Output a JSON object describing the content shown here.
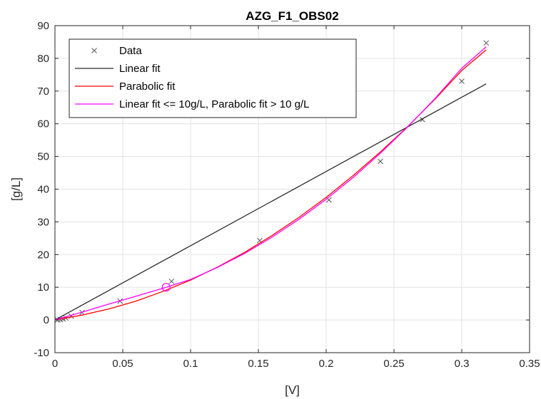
{
  "chart_data": {
    "type": "line",
    "title": "AZG_F1_OBS02",
    "xlabel": "[V]",
    "ylabel": "[g/L]",
    "xlim": [
      0,
      0.35
    ],
    "ylim": [
      -10,
      90
    ],
    "x_ticks": [
      "0",
      "0.05",
      "0.1",
      "0.15",
      "0.2",
      "0.25",
      "0.3",
      "0.35"
    ],
    "y_ticks": [
      "-10",
      "0",
      "10",
      "20",
      "30",
      "40",
      "50",
      "60",
      "70",
      "80",
      "90"
    ],
    "grid": true,
    "legend_position": "top-left",
    "legend": [
      {
        "label": "Data",
        "style": "marker-x",
        "color": "#555555"
      },
      {
        "label": "Linear fit",
        "style": "line",
        "color": "#2b2b2b"
      },
      {
        "label": "Parabolic fit",
        "style": "line",
        "color": "#ff0000"
      },
      {
        "label": "Linear fit <= 10g/L, Parabolic fit > 10 g/L",
        "style": "line",
        "color": "#ff00ff"
      }
    ],
    "series": [
      {
        "name": "Data",
        "kind": "scatter",
        "color": "#555555",
        "x": [
          0.002,
          0.004,
          0.006,
          0.008,
          0.012,
          0.02,
          0.048,
          0.086,
          0.151,
          0.202,
          0.24,
          0.271,
          0.3,
          0.318
        ],
        "y": [
          0.0,
          0.1,
          0.3,
          0.6,
          1.2,
          2.3,
          5.8,
          11.8,
          24.3,
          36.7,
          48.5,
          61.3,
          73.0,
          84.7
        ]
      },
      {
        "name": "Linear fit",
        "kind": "line",
        "color": "#2b2b2b",
        "x": [
          0,
          0.318
        ],
        "y": [
          0,
          72.2
        ]
      },
      {
        "name": "Parabolic fit",
        "kind": "line",
        "color": "#ff0000",
        "x": [
          0.0,
          0.02,
          0.04,
          0.06,
          0.08,
          0.1,
          0.12,
          0.14,
          0.16,
          0.18,
          0.2,
          0.22,
          0.24,
          0.26,
          0.28,
          0.3,
          0.318
        ],
        "y": [
          0.0,
          1.5,
          3.4,
          5.8,
          8.8,
          12.2,
          16.2,
          20.7,
          25.8,
          31.4,
          37.5,
          44.2,
          51.4,
          59.1,
          67.4,
          76.3,
          82.6
        ]
      },
      {
        "name": "Linear fit <= 10g/L, Parabolic fit > 10 g/L",
        "kind": "line",
        "color": "#ff00ff",
        "x": [
          0.0,
          0.02,
          0.04,
          0.06,
          0.082,
          0.1,
          0.12,
          0.14,
          0.16,
          0.18,
          0.2,
          0.22,
          0.24,
          0.26,
          0.28,
          0.3,
          0.318
        ],
        "y": [
          0.0,
          2.4,
          4.9,
          7.3,
          10.0,
          12.4,
          16.1,
          20.4,
          25.3,
          30.8,
          36.9,
          43.6,
          51.0,
          59.0,
          67.6,
          77.0,
          83.5
        ]
      }
    ],
    "annotations": [
      {
        "type": "circle-marker",
        "x": 0.082,
        "y": 10.0,
        "color": "#ff00ff"
      }
    ]
  }
}
